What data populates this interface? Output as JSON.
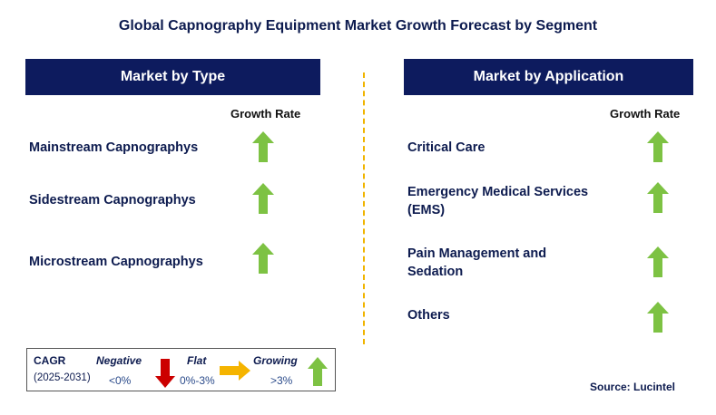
{
  "title": "Global Capnography Equipment Market Growth Forecast by Segment",
  "left_panel": {
    "header": "Market by Type",
    "growth_label": "Growth Rate",
    "items": [
      {
        "label": "Mainstream Capnographys",
        "trend": "growing"
      },
      {
        "label": "Sidestream Capnographys",
        "trend": "growing"
      },
      {
        "label": "Microstream Capnographys",
        "trend": "growing"
      }
    ]
  },
  "right_panel": {
    "header": "Market by Application",
    "growth_label": "Growth Rate",
    "items": [
      {
        "label": "Critical Care",
        "trend": "growing"
      },
      {
        "label": "Emergency Medical Services (EMS)",
        "trend": "growing"
      },
      {
        "label": "Pain Management and Sedation",
        "trend": "growing"
      },
      {
        "label": "Others",
        "trend": "growing"
      }
    ]
  },
  "legend": {
    "cagr_label": "CAGR",
    "period": "(2025-2031)",
    "negative_label": "Negative",
    "negative_value": "<0%",
    "flat_label": "Flat",
    "flat_value": "0%-3%",
    "growing_label": "Growing",
    "growing_value": ">3%"
  },
  "source": "Source: Lucintel",
  "colors": {
    "header_bg": "#0d1b5e",
    "growing": "#7dc243",
    "negative": "#cc0000",
    "flat": "#f5b400",
    "divider": "#f0b400"
  }
}
